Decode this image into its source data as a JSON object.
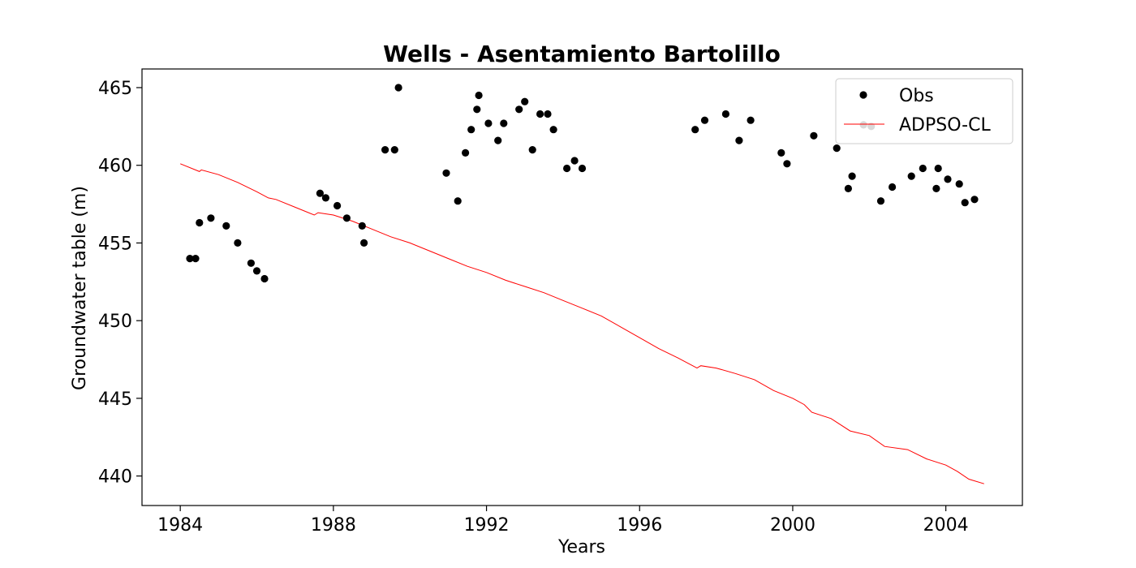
{
  "chart_data": {
    "type": "scatter",
    "title": "Wells - Asentamiento Bartolillo",
    "xlabel": "Years",
    "ylabel": "Groundwater table (m)",
    "xlim": [
      1983.0,
      2006.0
    ],
    "ylim": [
      438.1,
      466.2
    ],
    "xticks": [
      1984,
      1988,
      1992,
      1996,
      2000,
      2004
    ],
    "yticks": [
      440,
      445,
      450,
      455,
      460,
      465
    ],
    "grid": false,
    "legend": {
      "position": "upper right",
      "entries": [
        "Obs",
        "ADPSO-CL"
      ]
    },
    "series": [
      {
        "name": "Obs",
        "kind": "scatter",
        "color": "#000000",
        "points": [
          [
            1984.25,
            454.0
          ],
          [
            1984.4,
            454.0
          ],
          [
            1984.5,
            456.3
          ],
          [
            1984.8,
            456.6
          ],
          [
            1985.2,
            456.1
          ],
          [
            1985.5,
            455.0
          ],
          [
            1985.85,
            453.7
          ],
          [
            1986.0,
            453.2
          ],
          [
            1986.2,
            452.7
          ],
          [
            1987.65,
            458.2
          ],
          [
            1987.8,
            457.9
          ],
          [
            1988.1,
            457.4
          ],
          [
            1988.35,
            456.6
          ],
          [
            1988.75,
            456.1
          ],
          [
            1988.8,
            455.0
          ],
          [
            1989.35,
            461.0
          ],
          [
            1989.6,
            461.0
          ],
          [
            1989.7,
            465.0
          ],
          [
            1990.95,
            459.5
          ],
          [
            1991.25,
            457.7
          ],
          [
            1991.45,
            460.8
          ],
          [
            1991.6,
            462.3
          ],
          [
            1991.75,
            463.6
          ],
          [
            1991.8,
            464.5
          ],
          [
            1992.05,
            462.7
          ],
          [
            1992.3,
            461.6
          ],
          [
            1992.45,
            462.7
          ],
          [
            1992.85,
            463.6
          ],
          [
            1993.0,
            464.1
          ],
          [
            1993.2,
            461.0
          ],
          [
            1993.4,
            463.3
          ],
          [
            1993.6,
            463.3
          ],
          [
            1993.75,
            462.3
          ],
          [
            1994.1,
            459.8
          ],
          [
            1994.3,
            460.3
          ],
          [
            1994.5,
            459.8
          ],
          [
            1997.45,
            462.3
          ],
          [
            1997.7,
            462.9
          ],
          [
            1998.25,
            463.3
          ],
          [
            1998.6,
            461.6
          ],
          [
            1998.9,
            462.9
          ],
          [
            1999.7,
            460.8
          ],
          [
            1999.85,
            460.1
          ],
          [
            2000.55,
            461.9
          ],
          [
            2001.15,
            461.1
          ],
          [
            2001.45,
            458.5
          ],
          [
            2001.55,
            459.3
          ],
          [
            2001.85,
            462.6
          ],
          [
            2002.05,
            462.5
          ],
          [
            2002.3,
            457.7
          ],
          [
            2002.6,
            458.6
          ],
          [
            2003.1,
            459.3
          ],
          [
            2003.4,
            459.8
          ],
          [
            2003.75,
            458.5
          ],
          [
            2003.8,
            459.8
          ],
          [
            2004.05,
            459.1
          ],
          [
            2004.35,
            458.8
          ],
          [
            2004.5,
            457.6
          ],
          [
            2004.75,
            457.8
          ]
        ]
      },
      {
        "name": "ADPSO-CL",
        "kind": "line",
        "color": "#ff0000",
        "points": [
          [
            1984.0,
            460.1
          ],
          [
            1984.5,
            459.6
          ],
          [
            1984.55,
            459.7
          ],
          [
            1985.0,
            459.4
          ],
          [
            1985.5,
            458.9
          ],
          [
            1986.0,
            458.3
          ],
          [
            1986.3,
            457.9
          ],
          [
            1986.5,
            457.8
          ],
          [
            1987.0,
            457.3
          ],
          [
            1987.5,
            456.8
          ],
          [
            1987.6,
            456.95
          ],
          [
            1988.0,
            456.8
          ],
          [
            1988.5,
            456.4
          ],
          [
            1989.0,
            455.9
          ],
          [
            1989.5,
            455.4
          ],
          [
            1990.0,
            455.0
          ],
          [
            1990.5,
            454.5
          ],
          [
            1991.0,
            454.0
          ],
          [
            1991.5,
            453.5
          ],
          [
            1992.0,
            453.1
          ],
          [
            1992.5,
            452.6
          ],
          [
            1993.0,
            452.2
          ],
          [
            1993.5,
            451.8
          ],
          [
            1994.0,
            451.3
          ],
          [
            1994.5,
            450.8
          ],
          [
            1995.0,
            450.3
          ],
          [
            1995.5,
            449.6
          ],
          [
            1996.0,
            448.9
          ],
          [
            1996.5,
            448.2
          ],
          [
            1997.0,
            447.6
          ],
          [
            1997.5,
            446.95
          ],
          [
            1997.6,
            447.1
          ],
          [
            1998.0,
            446.95
          ],
          [
            1998.5,
            446.6
          ],
          [
            1999.0,
            446.2
          ],
          [
            1999.5,
            445.5
          ],
          [
            2000.0,
            445.0
          ],
          [
            2000.3,
            444.6
          ],
          [
            2000.5,
            444.1
          ],
          [
            2001.0,
            443.7
          ],
          [
            2001.5,
            442.9
          ],
          [
            2002.0,
            442.6
          ],
          [
            2002.4,
            441.9
          ],
          [
            2003.0,
            441.7
          ],
          [
            2003.5,
            441.1
          ],
          [
            2004.0,
            440.7
          ],
          [
            2004.3,
            440.3
          ],
          [
            2004.6,
            439.8
          ],
          [
            2005.0,
            439.5
          ]
        ]
      }
    ]
  }
}
